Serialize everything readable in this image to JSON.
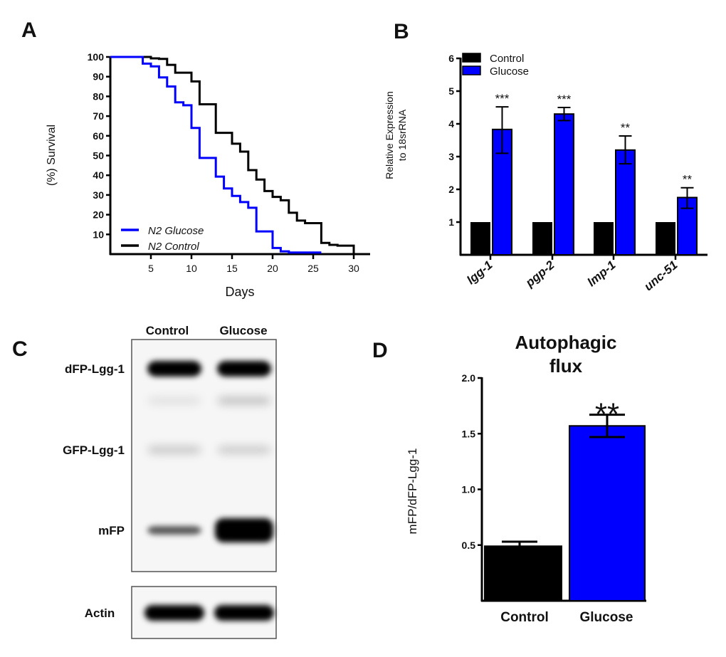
{
  "colors": {
    "control": "#000000",
    "glucose": "#0000ff",
    "axis": "#000000"
  },
  "panel_labels": {
    "a": "A",
    "b": "B",
    "c": "C",
    "d": "D"
  },
  "chart_data": [
    {
      "panel": "A",
      "type": "line",
      "step": true,
      "xlabel": "Days",
      "ylabel": "(%) Survival",
      "xlim": [
        0,
        30
      ],
      "ylim": [
        0,
        100
      ],
      "xticks": [
        5,
        10,
        15,
        20,
        25,
        30
      ],
      "yticks": [
        10,
        20,
        30,
        40,
        50,
        60,
        70,
        80,
        90,
        100
      ],
      "legend": "bottom-left",
      "series": [
        {
          "name": "N2 Glucose",
          "color": "#0000ff",
          "x": [
            0,
            4,
            5,
            6,
            7,
            8,
            9,
            10,
            11,
            13,
            14,
            15,
            16,
            17,
            18,
            20,
            21,
            22,
            26
          ],
          "y": [
            100,
            96.6,
            95.2,
            89.6,
            85,
            77,
            75.5,
            64,
            48.8,
            39.3,
            33.3,
            29.5,
            26.4,
            23.5,
            11.5,
            3.1,
            1.4,
            0.8,
            0.8
          ]
        },
        {
          "name": "N2 Control",
          "color": "#000000",
          "x": [
            0,
            5,
            6,
            7,
            8,
            10,
            11,
            13,
            15,
            16,
            17,
            18,
            19,
            20,
            21,
            22,
            23,
            24,
            26,
            27,
            28,
            30
          ],
          "y": [
            100,
            99.3,
            99,
            96,
            92,
            87.6,
            76,
            61.5,
            56,
            52,
            42.6,
            37.8,
            32,
            29,
            27.3,
            21,
            17,
            15.7,
            5.7,
            4.7,
            4.3,
            0
          ]
        }
      ]
    },
    {
      "panel": "B",
      "type": "bar",
      "ylabel": [
        "Relative Expression",
        "to 18srRNA"
      ],
      "ylim": [
        0,
        6
      ],
      "yticks": [
        1,
        2,
        3,
        4,
        5,
        6
      ],
      "categories": [
        "lgg-1",
        "pgp-2",
        "lmp-1",
        "unc-51"
      ],
      "legend": "top-left",
      "series": [
        {
          "name": "Control",
          "color": "#000000",
          "values": [
            1,
            1,
            1,
            1
          ]
        },
        {
          "name": "Glucose",
          "color": "#0000ff",
          "values": [
            3.83,
            4.3,
            3.2,
            1.75
          ],
          "error_low": [
            3.1,
            4.1,
            2.78,
            1.42
          ],
          "error_high": [
            4.52,
            4.5,
            3.63,
            2.05
          ],
          "significance": [
            "***",
            "***",
            "**",
            "**"
          ]
        }
      ]
    },
    {
      "panel": "D",
      "type": "bar",
      "title": [
        "Autophagic",
        "flux"
      ],
      "ylabel": "mFP/dFP-Lgg-1",
      "ylim": [
        0,
        2.0
      ],
      "yticks": [
        "0.5",
        "1.0",
        "1.5",
        "2.0"
      ],
      "categories": [
        "Control",
        "Glucose"
      ],
      "values": [
        0.49,
        1.57
      ],
      "error_low": [
        0.49,
        1.47
      ],
      "error_high": [
        0.53,
        1.67
      ],
      "colors": [
        "#000000",
        "#0000ff"
      ],
      "significance": [
        "",
        "**"
      ]
    }
  ],
  "blot": {
    "lanes": [
      "Control",
      "Glucose"
    ],
    "bands": [
      {
        "label": "dFP-Lgg-1",
        "intensity": [
          1.0,
          1.0
        ]
      },
      {
        "label": "",
        "intensity": [
          0.08,
          0.2
        ]
      },
      {
        "label": "GFP-Lgg-1",
        "intensity": [
          0.18,
          0.17
        ]
      },
      {
        "label": "mFP",
        "intensity": [
          0.65,
          1.0
        ]
      }
    ],
    "loading_control": {
      "label": "Actin",
      "intensity": [
        1.0,
        1.0
      ]
    }
  }
}
